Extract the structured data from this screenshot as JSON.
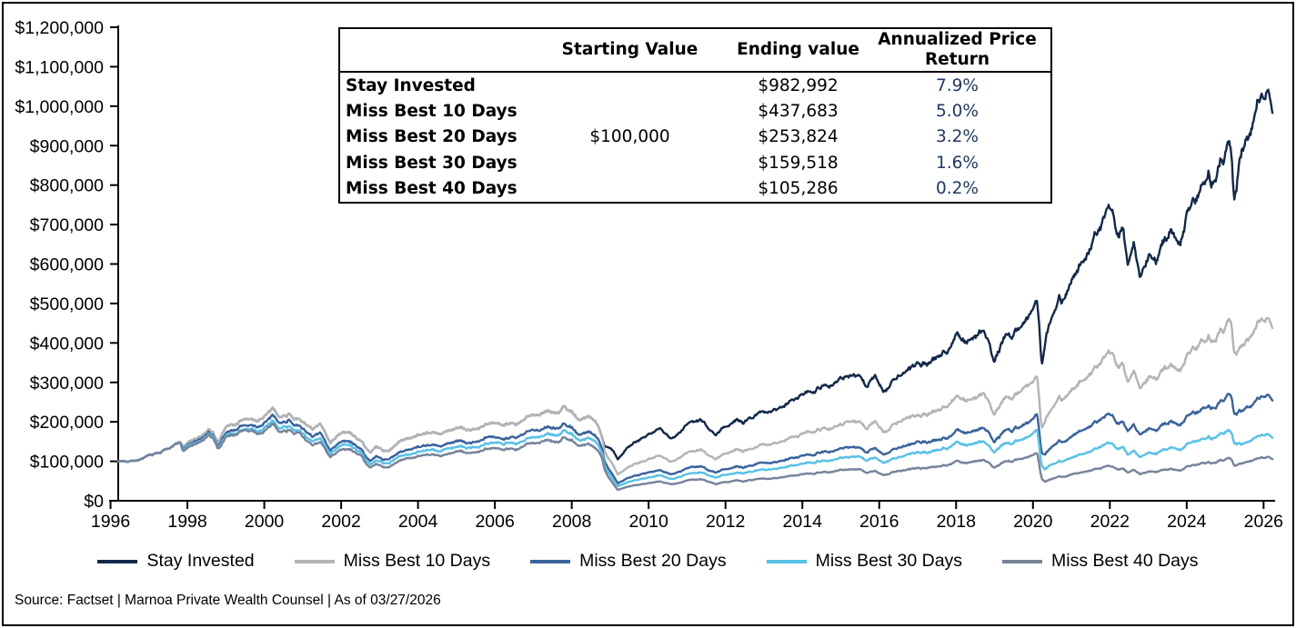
{
  "table": {
    "col_headers": [
      "",
      "Starting Value",
      "Ending value",
      "Annualized Price Return"
    ],
    "rows": [
      {
        "label": "Stay Invested",
        "starting": "",
        "ending": "$982,992",
        "annualized": "7.9%"
      },
      {
        "label": "Miss Best 10 Days",
        "starting": "",
        "ending": "$437,683",
        "annualized": "5.0%"
      },
      {
        "label": "Miss Best 20 Days",
        "starting": "$100,000",
        "ending": "$253,824",
        "annualized": "3.2%"
      },
      {
        "label": "Miss Best 30 Days",
        "starting": "",
        "ending": "$159,518",
        "annualized": "1.6%"
      },
      {
        "label": "Miss Best 40 Days",
        "starting": "",
        "ending": "$105,286",
        "annualized": "0.2%"
      }
    ],
    "percent_text_color": "#1f3864"
  },
  "legend": {
    "items": [
      {
        "label": "Stay Invested",
        "color": "#12294b"
      },
      {
        "label": "Miss Best 10 Days",
        "color": "#b3b4b6"
      },
      {
        "label": "Miss Best 20 Days",
        "color": "#39639d"
      },
      {
        "label": "Miss Best 30 Days",
        "color": "#57c1e8"
      },
      {
        "label": "Miss Best 40 Days",
        "color": "#76839a"
      }
    ]
  },
  "source_line": "Source: Factset | Marnoa Private Wealth Counsel | As of 03/27/2026",
  "chart_data": {
    "type": "line",
    "title": "",
    "xlabel": "",
    "ylabel": "",
    "grid": false,
    "legend_position": "bottom",
    "units": "USD thousands (growth of $100,000 starting value)",
    "x_start": 1996.2,
    "x_end": 2026.23,
    "x_ticks": [
      1996,
      1998,
      2000,
      2002,
      2004,
      2006,
      2008,
      2010,
      2012,
      2014,
      2016,
      2018,
      2020,
      2022,
      2024,
      2026
    ],
    "y_tick_step_thousands": 100,
    "ylim_thousands": [
      0,
      1200
    ],
    "y_tick_labels": [
      "$0",
      "$100,000",
      "$200,000",
      "$300,000",
      "$400,000",
      "$500,000",
      "$600,000",
      "$700,000",
      "$800,000",
      "$900,000",
      "$1,000,000",
      "$1,100,000",
      "$1,200,000"
    ],
    "series": [
      {
        "name": "Stay Invested",
        "color": "#12294b",
        "ending_value_usd": 982992,
        "annualized_return_pct": 7.9,
        "anchors_year_value_thousands": [
          [
            1996.2,
            100
          ],
          [
            1996.7,
            104
          ],
          [
            1997.0,
            113
          ],
          [
            1997.3,
            122
          ],
          [
            1997.6,
            140
          ],
          [
            1997.82,
            148
          ],
          [
            1997.88,
            137
          ],
          [
            1998.1,
            152
          ],
          [
            1998.35,
            162
          ],
          [
            1998.55,
            176
          ],
          [
            1998.67,
            170
          ],
          [
            1998.78,
            148
          ],
          [
            1999.0,
            188
          ],
          [
            1999.3,
            196
          ],
          [
            1999.55,
            210
          ],
          [
            1999.8,
            199
          ],
          [
            2000.0,
            215
          ],
          [
            2000.22,
            228
          ],
          [
            2000.45,
            214
          ],
          [
            2000.65,
            222
          ],
          [
            2000.9,
            205
          ],
          [
            2001.1,
            196
          ],
          [
            2001.25,
            178
          ],
          [
            2001.45,
            192
          ],
          [
            2001.72,
            150
          ],
          [
            2001.95,
            172
          ],
          [
            2002.2,
            172
          ],
          [
            2002.5,
            154
          ],
          [
            2002.77,
            120
          ],
          [
            2002.9,
            138
          ],
          [
            2003.2,
            124
          ],
          [
            2003.5,
            150
          ],
          [
            2003.8,
            160
          ],
          [
            2004.0,
            170
          ],
          [
            2004.25,
            176
          ],
          [
            2004.6,
            167
          ],
          [
            2005.0,
            185
          ],
          [
            2005.35,
            178
          ],
          [
            2005.7,
            188
          ],
          [
            2006.0,
            194
          ],
          [
            2006.4,
            201
          ],
          [
            2006.55,
            191
          ],
          [
            2007.0,
            218
          ],
          [
            2007.4,
            232
          ],
          [
            2007.65,
            223
          ],
          [
            2007.78,
            238
          ],
          [
            2008.0,
            226
          ],
          [
            2008.2,
            206
          ],
          [
            2008.42,
            214
          ],
          [
            2008.68,
            193
          ],
          [
            2008.76,
            172
          ],
          [
            2008.85,
            141
          ],
          [
            2008.98,
            136
          ],
          [
            2009.08,
            126
          ],
          [
            2009.2,
            105
          ],
          [
            2009.45,
            136
          ],
          [
            2009.75,
            156
          ],
          [
            2010.0,
            171
          ],
          [
            2010.3,
            184
          ],
          [
            2010.55,
            158
          ],
          [
            2010.8,
            170
          ],
          [
            2011.0,
            192
          ],
          [
            2011.35,
            206
          ],
          [
            2011.6,
            181
          ],
          [
            2011.75,
            170
          ],
          [
            2011.95,
            190
          ],
          [
            2012.3,
            206
          ],
          [
            2012.45,
            196
          ],
          [
            2012.75,
            216
          ],
          [
            2013.0,
            223
          ],
          [
            2013.5,
            241
          ],
          [
            2014.0,
            276
          ],
          [
            2014.6,
            293
          ],
          [
            2014.8,
            300
          ],
          [
            2015.0,
            311
          ],
          [
            2015.4,
            321
          ],
          [
            2015.67,
            288
          ],
          [
            2015.9,
            315
          ],
          [
            2016.12,
            283
          ],
          [
            2016.5,
            318
          ],
          [
            2016.8,
            331
          ],
          [
            2017.0,
            341
          ],
          [
            2017.5,
            361
          ],
          [
            2017.8,
            386
          ],
          [
            2018.04,
            432
          ],
          [
            2018.25,
            401
          ],
          [
            2018.5,
            416
          ],
          [
            2018.73,
            442
          ],
          [
            2019.0,
            358
          ],
          [
            2019.3,
            428
          ],
          [
            2019.45,
            416
          ],
          [
            2019.6,
            440
          ],
          [
            2019.78,
            453
          ],
          [
            2020.1,
            512
          ],
          [
            2020.16,
            462
          ],
          [
            2020.23,
            345
          ],
          [
            2020.35,
            420
          ],
          [
            2020.5,
            466
          ],
          [
            2020.68,
            530
          ],
          [
            2020.76,
            502
          ],
          [
            2020.88,
            524
          ],
          [
            2021.0,
            560
          ],
          [
            2021.2,
            591
          ],
          [
            2021.45,
            636
          ],
          [
            2021.7,
            690
          ],
          [
            2021.85,
            706
          ],
          [
            2021.98,
            742
          ],
          [
            2022.1,
            701
          ],
          [
            2022.2,
            661
          ],
          [
            2022.35,
            691
          ],
          [
            2022.47,
            591
          ],
          [
            2022.62,
            661
          ],
          [
            2022.78,
            556
          ],
          [
            2022.9,
            591
          ],
          [
            2023.05,
            634
          ],
          [
            2023.2,
            606
          ],
          [
            2023.45,
            661
          ],
          [
            2023.6,
            691
          ],
          [
            2023.82,
            649
          ],
          [
            2024.0,
            726
          ],
          [
            2024.2,
            771
          ],
          [
            2024.4,
            801
          ],
          [
            2024.57,
            838
          ],
          [
            2024.62,
            796
          ],
          [
            2024.85,
            856
          ],
          [
            2025.05,
            876
          ],
          [
            2025.12,
            892
          ],
          [
            2025.18,
            830
          ],
          [
            2025.24,
            757
          ],
          [
            2025.38,
            860
          ],
          [
            2025.5,
            906
          ],
          [
            2025.65,
            956
          ],
          [
            2025.8,
            1012
          ],
          [
            2025.95,
            1062
          ],
          [
            2026.05,
            1031
          ],
          [
            2026.12,
            1053
          ],
          [
            2026.23,
            982.992
          ]
        ]
      },
      {
        "name": "Miss Best 10 Days",
        "color": "#b3b4b6",
        "ending_value_usd": 437683,
        "annualized_return_pct": 5.0,
        "factor_of_stay_invested_anchors": [
          [
            1996.2,
            1
          ],
          [
            2008.8,
            1
          ],
          [
            2008.95,
            0.8
          ],
          [
            2009.2,
            0.63
          ],
          [
            2020.12,
            0.63
          ],
          [
            2020.19,
            0.555
          ],
          [
            2020.32,
            0.505
          ],
          [
            2025.2,
            0.505
          ],
          [
            2025.42,
            0.4453
          ],
          [
            2026.23,
            0.44525
          ]
        ]
      },
      {
        "name": "Miss Best 20 Days",
        "color": "#39639d",
        "ending_value_usd": 253824,
        "annualized_return_pct": 3.2,
        "factor_of_stay_invested_anchors": [
          [
            1996.2,
            1
          ],
          [
            1997.8,
            1
          ],
          [
            1997.9,
            0.96
          ],
          [
            1998.75,
            0.96
          ],
          [
            1998.85,
            0.925
          ],
          [
            2000.95,
            0.925
          ],
          [
            2001.1,
            0.9
          ],
          [
            2001.45,
            0.875
          ],
          [
            2002.5,
            0.875
          ],
          [
            2002.65,
            0.835
          ],
          [
            2002.85,
            0.82
          ],
          [
            2008.8,
            0.82
          ],
          [
            2008.95,
            0.62
          ],
          [
            2009.2,
            0.425
          ],
          [
            2020.12,
            0.425
          ],
          [
            2020.32,
            0.293
          ],
          [
            2025.2,
            0.293
          ],
          [
            2025.42,
            0.2582
          ],
          [
            2026.23,
            0.25822
          ]
        ]
      },
      {
        "name": "Miss Best 30 Days",
        "color": "#57c1e8",
        "ending_value_usd": 159518,
        "annualized_return_pct": 1.6,
        "factor_of_stay_invested_anchors": [
          [
            1996.2,
            1
          ],
          [
            1997.8,
            1
          ],
          [
            1997.9,
            0.935
          ],
          [
            1998.75,
            0.935
          ],
          [
            1998.85,
            0.885
          ],
          [
            1999.75,
            0.885
          ],
          [
            1999.85,
            0.862
          ],
          [
            2000.95,
            0.862
          ],
          [
            2001.1,
            0.832
          ],
          [
            2001.45,
            0.81
          ],
          [
            2002.5,
            0.81
          ],
          [
            2002.65,
            0.765
          ],
          [
            2002.85,
            0.745
          ],
          [
            2008.8,
            0.745
          ],
          [
            2008.95,
            0.53
          ],
          [
            2009.2,
            0.35
          ],
          [
            2020.12,
            0.35
          ],
          [
            2020.32,
            0.196
          ],
          [
            2025.2,
            0.196
          ],
          [
            2025.42,
            0.1623
          ],
          [
            2026.23,
            0.16228
          ]
        ]
      },
      {
        "name": "Miss Best 40 Days",
        "color": "#76839a",
        "ending_value_usd": 105286,
        "annualized_return_pct": 0.2,
        "factor_of_stay_invested_anchors": [
          [
            1996.2,
            1
          ],
          [
            1997.8,
            1
          ],
          [
            1997.9,
            0.915
          ],
          [
            1998.75,
            0.915
          ],
          [
            1998.85,
            0.858
          ],
          [
            1999.75,
            0.858
          ],
          [
            1999.85,
            0.83
          ],
          [
            2000.95,
            0.83
          ],
          [
            2001.1,
            0.79
          ],
          [
            2001.45,
            0.76
          ],
          [
            2002.5,
            0.76
          ],
          [
            2002.65,
            0.7
          ],
          [
            2002.85,
            0.675
          ],
          [
            2008.8,
            0.675
          ],
          [
            2008.95,
            0.45
          ],
          [
            2009.2,
            0.265
          ],
          [
            2011.6,
            0.265
          ],
          [
            2011.75,
            0.25
          ],
          [
            2015.65,
            0.25
          ],
          [
            2015.78,
            0.238
          ],
          [
            2020.12,
            0.238
          ],
          [
            2020.32,
            0.119
          ],
          [
            2025.2,
            0.119
          ],
          [
            2025.42,
            0.1072
          ],
          [
            2026.23,
            0.10711
          ]
        ]
      }
    ]
  }
}
